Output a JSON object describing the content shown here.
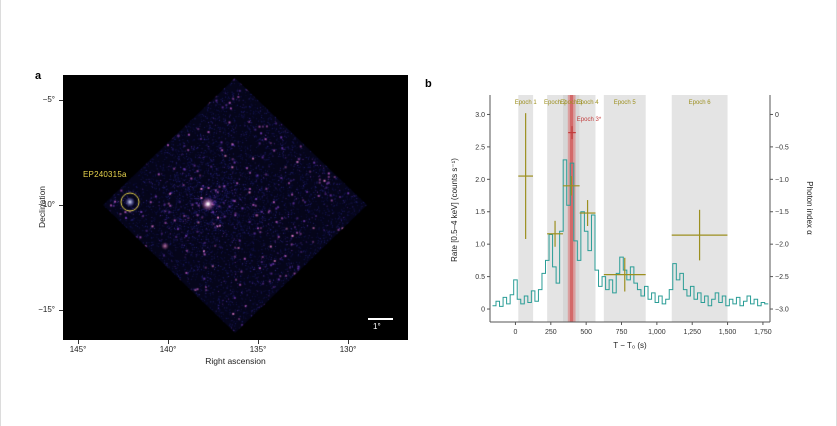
{
  "figure": {
    "panel_a": {
      "label": "a",
      "xlabel": "Right ascension",
      "ylabel": "Declination",
      "x_ticks": [
        "145°",
        "140°",
        "135°",
        "130°"
      ],
      "y_ticks": [
        "−5°",
        "−10°",
        "−15°"
      ],
      "source_label": "EP240315a",
      "scalebar_label": "1°",
      "colors": {
        "background": "#000000",
        "source_marker": "#e8d44d"
      }
    },
    "panel_b": {
      "label": "b",
      "xlabel": "T − T₀ (s)",
      "ylabel_left": "Rate [0.5–4 keV] (counts s⁻¹)",
      "ylabel_right": "Photon index α"
    }
  },
  "chart_data": {
    "type": "line",
    "title": "",
    "xlabel": "T − T₀ (s)",
    "ylabel_left": "Rate [0.5–4 keV] (counts s⁻¹)",
    "ylabel_right": "Photon index α",
    "xlim": [
      -180,
      1800
    ],
    "ylim_rate": [
      -0.2,
      3.3
    ],
    "ylim_alpha": [
      -3.2,
      0.3
    ],
    "alpha_to_rate_offset": 3.0,
    "x_ticks": [
      0,
      250,
      500,
      750,
      1000,
      1250,
      1500,
      1750
    ],
    "x_tick_labels": [
      "0",
      "250",
      "500",
      "750",
      "1,000",
      "1,250",
      "1,500",
      "1,750"
    ],
    "rate_ticks": [
      0,
      0.5,
      1.0,
      1.5,
      2.0,
      2.5,
      3.0
    ],
    "rate_tick_labels": [
      "0",
      "0.5",
      "1.0",
      "1.5",
      "2.0",
      "2.5",
      "3.0"
    ],
    "alpha_ticks": [
      0,
      -0.5,
      -1.0,
      -1.5,
      -2.0,
      -2.5,
      -3.0
    ],
    "alpha_tick_labels": [
      "0",
      "−0.5",
      "−1.0",
      "−1.5",
      "−2.0",
      "−2.5",
      "−3.0"
    ],
    "colors": {
      "lightcurve": "#2a9d96",
      "photon_index": "#9c8f1f",
      "epoch_band": "#e4e4e4",
      "epoch3_band": "#d6d6d6",
      "epoch3_star_band": "#e06060",
      "epoch3_star_core": "#cd3c3c",
      "epoch3_star_label": "#c13b3b"
    },
    "epochs": [
      {
        "label": "Epoch 1",
        "x0": 20,
        "x1": 125,
        "fill": "#e4e4e4"
      },
      {
        "label": "Epoch 2",
        "x0": 224,
        "x1": 336,
        "fill": "#e4e4e4"
      },
      {
        "label": "Epoch 3",
        "x0": 336,
        "x1": 454,
        "fill": "#d6d6d6"
      },
      {
        "label": "Epoch 4",
        "x0": 454,
        "x1": 566,
        "fill": "#e4e4e4"
      },
      {
        "label": "Epoch 5",
        "x0": 625,
        "x1": 921,
        "fill": "#e4e4e4"
      },
      {
        "label": "Epoch 6",
        "x0": 1105,
        "x1": 1500,
        "fill": "#e4e4e4"
      }
    ],
    "epoch3_star": {
      "label": "Epoch 3*",
      "x0": 370,
      "x1": 425,
      "core_x0": 385,
      "core_x1": 408,
      "label_x": 520,
      "label_alpha": -0.1
    },
    "photon_index_points": [
      {
        "epoch": "Epoch 1",
        "x": 72,
        "xerr": 52,
        "alpha": -0.95,
        "alpha_err": 0.97
      },
      {
        "epoch": "Epoch 2",
        "x": 280,
        "xerr": 56,
        "alpha": -1.84,
        "alpha_err": 0.2
      },
      {
        "epoch": "Epoch 3",
        "x": 395,
        "xerr": 59,
        "alpha": -1.1,
        "alpha_err": 0.15
      },
      {
        "epoch": "Epoch 4",
        "x": 510,
        "xerr": 56,
        "alpha": -1.52,
        "alpha_err": 0.2
      },
      {
        "epoch": "Epoch 5",
        "x": 773,
        "xerr": 148,
        "alpha": -2.47,
        "alpha_err": 0.26
      },
      {
        "epoch": "Epoch 6",
        "x": 1302,
        "xerr": 197,
        "alpha": -1.86,
        "alpha_err": 0.39
      }
    ],
    "epoch3_star_point": {
      "x": 400,
      "xerr": 27,
      "alpha": -0.28,
      "alpha_err": 0.1
    },
    "lightcurve": {
      "bin_width": 25,
      "x": [
        -150,
        -125,
        -100,
        -75,
        -50,
        -25,
        0,
        25,
        50,
        75,
        100,
        125,
        150,
        175,
        200,
        225,
        250,
        275,
        300,
        325,
        350,
        375,
        400,
        425,
        450,
        475,
        500,
        525,
        550,
        575,
        600,
        625,
        650,
        675,
        700,
        725,
        750,
        775,
        800,
        825,
        850,
        875,
        900,
        925,
        950,
        975,
        1000,
        1025,
        1050,
        1075,
        1100,
        1125,
        1150,
        1175,
        1200,
        1225,
        1250,
        1275,
        1300,
        1325,
        1350,
        1375,
        1400,
        1425,
        1450,
        1475,
        1500,
        1525,
        1550,
        1575,
        1600,
        1625,
        1650,
        1675,
        1700,
        1725,
        1750,
        1775
      ],
      "rate": [
        0.05,
        0.12,
        0.04,
        0.18,
        0.08,
        0.22,
        0.45,
        0.15,
        0.08,
        0.2,
        0.1,
        0.28,
        0.12,
        0.3,
        0.55,
        0.75,
        1.15,
        0.65,
        0.4,
        1.2,
        2.3,
        1.6,
        2.25,
        1.05,
        0.75,
        1.5,
        1.2,
        0.9,
        1.45,
        0.6,
        0.35,
        0.5,
        0.3,
        0.45,
        0.25,
        0.55,
        0.8,
        0.6,
        0.45,
        0.65,
        0.4,
        0.3,
        0.2,
        0.35,
        0.15,
        0.25,
        0.1,
        0.2,
        0.08,
        0.15,
        0.3,
        0.7,
        0.45,
        0.55,
        0.3,
        0.2,
        0.35,
        0.15,
        0.25,
        0.1,
        0.2,
        0.05,
        0.15,
        0.25,
        0.1,
        0.2,
        0.05,
        0.15,
        0.08,
        0.18,
        0.05,
        0.12,
        0.2,
        0.08,
        0.15,
        0.05,
        0.1,
        0.08
      ]
    }
  }
}
